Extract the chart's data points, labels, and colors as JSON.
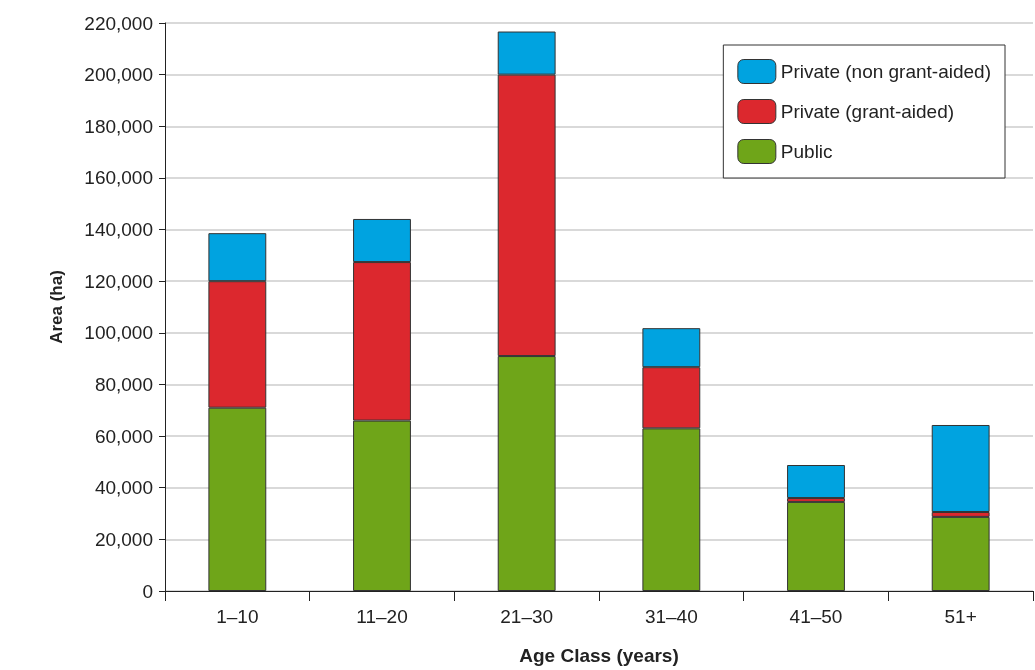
{
  "chart_data": {
    "type": "bar",
    "xlabel": "Age Class (years)",
    "ylabel": "Area (ha)",
    "categories": [
      "1–10",
      "11–20",
      "21–30",
      "31–40",
      "41–50",
      "51+"
    ],
    "stacked": true,
    "series": [
      {
        "name": "Public",
        "color": "#6fa519",
        "values": [
          71000,
          66000,
          91000,
          63000,
          34500,
          28700
        ]
      },
      {
        "name": "Private (grant-aided)",
        "color": "#dc282e",
        "values": [
          49000,
          61400,
          109000,
          23700,
          1500,
          1900
        ]
      },
      {
        "name": "Private (non grant-aided)",
        "color": "#00a3e0",
        "values": [
          18600,
          16700,
          16700,
          15100,
          12800,
          33700
        ]
      }
    ],
    "ylim": [
      0,
      220000
    ],
    "yticks": [
      {
        "value": 0,
        "label": "0"
      },
      {
        "value": 20000,
        "label": "20,000"
      },
      {
        "value": 40000,
        "label": "40,000"
      },
      {
        "value": 60000,
        "label": "60,000"
      },
      {
        "value": 80000,
        "label": "80,000"
      },
      {
        "value": 100000,
        "label": "100,000"
      },
      {
        "value": 120000,
        "label": "120,000"
      },
      {
        "value": 140000,
        "label": "140,000"
      },
      {
        "value": 160000,
        "label": "160,000"
      },
      {
        "value": 180000,
        "label": "180,000"
      },
      {
        "value": 200000,
        "label": "200,000"
      },
      {
        "value": 220000,
        "label": "220,000"
      }
    ],
    "grid": "y",
    "legend": "top right"
  }
}
